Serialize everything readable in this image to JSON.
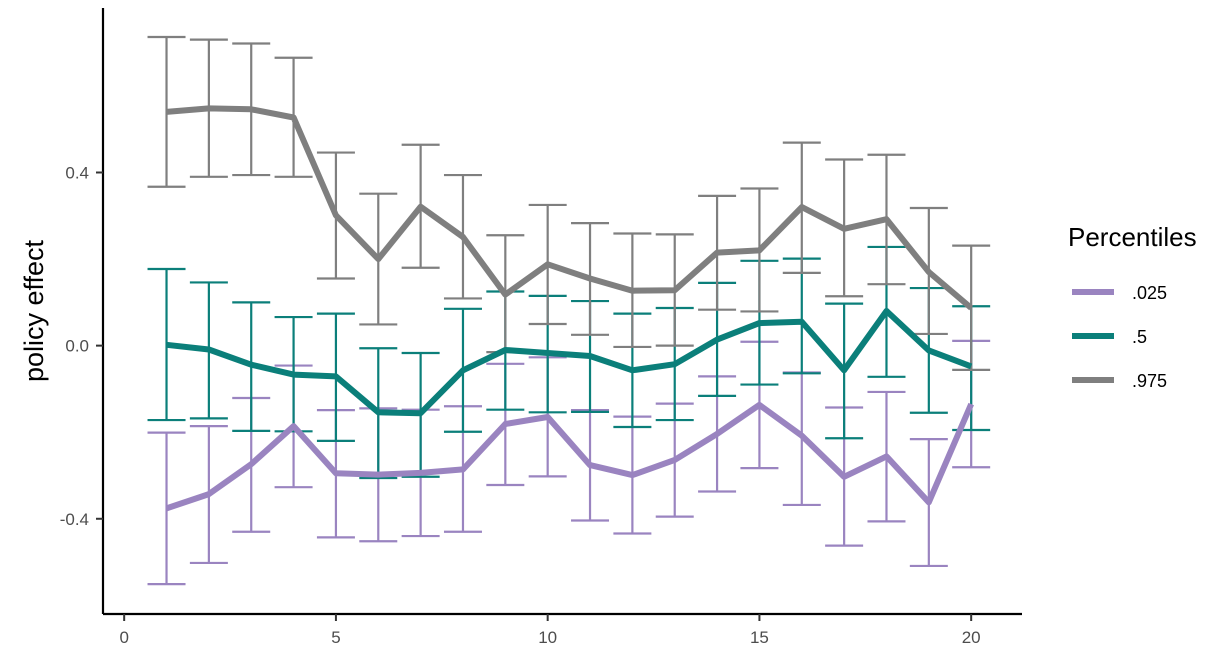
{
  "chart_data": {
    "type": "line",
    "title": "",
    "xlabel": "",
    "ylabel": "policy effect",
    "xlim": [
      -0.5,
      21.2
    ],
    "ylim": [
      -0.62,
      0.78
    ],
    "x_ticks": [
      0,
      5,
      10,
      15,
      20
    ],
    "x_tick_labels": [
      "0",
      "5",
      "10",
      "15",
      "20"
    ],
    "y_ticks": [
      -0.4,
      0.0,
      0.4
    ],
    "y_tick_labels": [
      "-0.4",
      "0.0",
      "0.4"
    ],
    "grid": false,
    "legend": {
      "title": "Percentiles",
      "position": "right"
    },
    "x": [
      1,
      2,
      3,
      4,
      5,
      6,
      7,
      8,
      9,
      10,
      11,
      12,
      13,
      14,
      15,
      16,
      17,
      18,
      19,
      20
    ],
    "series": [
      {
        "name": ".025",
        "color": "#9a84c0",
        "values": [
          -0.376,
          -0.343,
          -0.274,
          -0.186,
          -0.295,
          -0.298,
          -0.294,
          -0.286,
          -0.181,
          -0.165,
          -0.276,
          -0.299,
          -0.264,
          -0.204,
          -0.137,
          -0.208,
          -0.303,
          -0.256,
          -0.362,
          -0.135
        ],
        "lower": [
          -0.551,
          -0.502,
          -0.43,
          -0.327,
          -0.443,
          -0.452,
          -0.44,
          -0.43,
          -0.322,
          -0.302,
          -0.404,
          -0.434,
          -0.395,
          -0.337,
          -0.283,
          -0.368,
          -0.462,
          -0.406,
          -0.509,
          -0.281
        ],
        "upper": [
          -0.201,
          -0.186,
          -0.121,
          -0.046,
          -0.149,
          -0.145,
          -0.148,
          -0.14,
          -0.042,
          -0.027,
          -0.149,
          -0.164,
          -0.134,
          -0.071,
          0.009,
          -0.062,
          -0.143,
          -0.107,
          -0.216,
          0.011
        ]
      },
      {
        "name": ".5",
        "color": "#0b7f7a",
        "values": [
          0.002,
          -0.009,
          -0.044,
          -0.067,
          -0.071,
          -0.154,
          -0.156,
          -0.057,
          -0.01,
          -0.017,
          -0.024,
          -0.057,
          -0.043,
          0.014,
          0.052,
          0.055,
          -0.057,
          0.08,
          -0.011,
          -0.048
        ],
        "lower": [
          -0.172,
          -0.168,
          -0.197,
          -0.198,
          -0.22,
          -0.306,
          -0.303,
          -0.199,
          -0.148,
          -0.154,
          -0.153,
          -0.188,
          -0.172,
          -0.116,
          -0.09,
          -0.064,
          -0.214,
          -0.072,
          -0.155,
          -0.195
        ],
        "upper": [
          0.177,
          0.146,
          0.1,
          0.066,
          0.074,
          -0.006,
          -0.017,
          0.085,
          0.125,
          0.115,
          0.103,
          0.074,
          0.087,
          0.145,
          0.196,
          0.201,
          0.097,
          0.228,
          0.133,
          0.091
        ]
      },
      {
        "name": ".975",
        "color": "#7f7f7f",
        "values": [
          0.54,
          0.548,
          0.546,
          0.527,
          0.301,
          0.2,
          0.321,
          0.251,
          0.118,
          0.188,
          0.155,
          0.127,
          0.128,
          0.215,
          0.22,
          0.32,
          0.27,
          0.292,
          0.17,
          0.087
        ],
        "lower": [
          0.367,
          0.39,
          0.394,
          0.39,
          0.155,
          0.049,
          0.18,
          0.109,
          -0.015,
          0.05,
          0.025,
          -0.003,
          0.0,
          0.083,
          0.079,
          0.168,
          0.114,
          0.142,
          0.027,
          -0.056
        ],
        "upper": [
          0.713,
          0.707,
          0.698,
          0.665,
          0.446,
          0.351,
          0.464,
          0.394,
          0.255,
          0.325,
          0.283,
          0.259,
          0.257,
          0.346,
          0.363,
          0.469,
          0.43,
          0.441,
          0.318,
          0.231
        ]
      }
    ]
  }
}
